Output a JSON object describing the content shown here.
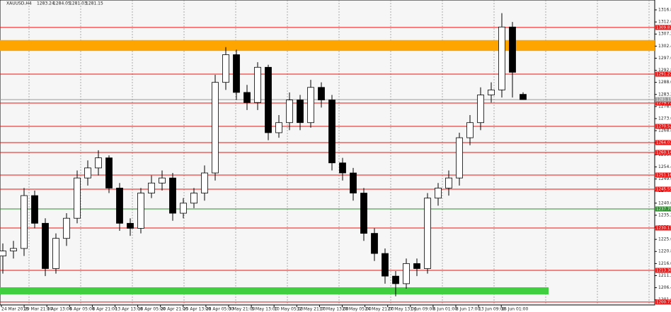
{
  "chart_data": {
    "type": "candlestick",
    "symbol": "XAUUSD,H4",
    "ylim": [
      1199.55,
      1320.73
    ],
    "yticks": [
      {
        "value": 1316.8,
        "label": "1316.80"
      },
      {
        "value": 1312.0,
        "label": "1312.00"
      },
      {
        "value": 1307.2,
        "label": "1307.20"
      },
      {
        "value": 1302.4,
        "label": "1302.40"
      },
      {
        "value": 1297.6,
        "label": "1297.60"
      },
      {
        "value": 1292.8,
        "label": "1292.80"
      },
      {
        "value": 1288.0,
        "label": "1288.00"
      },
      {
        "value": 1283.2,
        "label": "1283.20"
      },
      {
        "value": 1278.4,
        "label": "1278.40"
      },
      {
        "value": 1273.6,
        "label": "1273.60"
      },
      {
        "value": 1268.8,
        "label": "1268.80"
      },
      {
        "value": 1264.0,
        "label": "1264.00"
      },
      {
        "value": 1259.2,
        "label": "1259.20"
      },
      {
        "value": 1254.4,
        "label": "1254.40"
      },
      {
        "value": 1249.6,
        "label": "1249.60"
      },
      {
        "value": 1244.8,
        "label": "1244.80"
      },
      {
        "value": 1240.0,
        "label": "1240.00"
      },
      {
        "value": 1235.2,
        "label": "1235.20"
      },
      {
        "value": 1230.4,
        "label": "1230.40"
      },
      {
        "value": 1225.6,
        "label": "1225.60"
      },
      {
        "value": 1220.8,
        "label": "1220.80"
      },
      {
        "value": 1216.0,
        "label": "1216.00"
      },
      {
        "value": 1211.2,
        "label": "1211.20"
      },
      {
        "value": 1206.4,
        "label": "1206.40"
      },
      {
        "value": 1201.6,
        "label": "1201.60"
      }
    ],
    "x_labels": [
      "24 Mar 2016",
      "29 Mar 21:00",
      "1 Apr 13:00",
      "6 Apr 05:00",
      "8 Apr 21:00",
      "13 Apr 13:00",
      "18 Apr 05:00",
      "20 Apr 21:00",
      "25 Apr 13:00",
      "28 Apr 05:00",
      "3 May 21:00",
      "5 May 13:00",
      "10 May 05:00",
      "12 May 21:00",
      "17 May 13:00",
      "20 May 05:00",
      "24 May 21:00",
      "27 May 13:00",
      "1 Jun 09:00",
      "6 Jun 01:00",
      "8 Jun 17:00",
      "13 Jun 09:00",
      "16 Jun 01:00"
    ],
    "open": [
      1219,
      1221,
      1222,
      1243,
      1232,
      1214,
      1226,
      1234,
      1250,
      1254,
      1258,
      1246,
      1232,
      1230,
      1244,
      1248,
      1250,
      1236,
      1240,
      1244,
      1252,
      1288,
      1299,
      1284,
      1280,
      1294,
      1268,
      1272,
      1281,
      1272,
      1286,
      1281,
      1256,
      1252,
      1244,
      1228,
      1220,
      1211,
      1208,
      1216,
      1214,
      1242,
      1246,
      1250,
      1266,
      1272,
      1283,
      1285,
      1310,
      1283.24
    ],
    "high": [
      1224,
      1225,
      1246,
      1245,
      1234,
      1228,
      1236,
      1253,
      1257,
      1261,
      1259,
      1248,
      1234,
      1246,
      1251,
      1253,
      1252,
      1242,
      1246,
      1255,
      1291,
      1302,
      1301,
      1287,
      1296,
      1295,
      1275,
      1284,
      1283,
      1289,
      1288,
      1283,
      1258,
      1254,
      1246,
      1230,
      1222,
      1213,
      1218,
      1218,
      1244,
      1248,
      1253,
      1268,
      1275,
      1286,
      1288,
      1315.5,
      1312,
      1284.05
    ],
    "low": [
      1212,
      1218,
      1219,
      1230,
      1211,
      1212,
      1223,
      1232,
      1247,
      1251,
      1244,
      1229,
      1227,
      1228,
      1242,
      1245,
      1233,
      1234,
      1238,
      1241,
      1249,
      1285,
      1281,
      1277,
      1277,
      1265,
      1266,
      1269,
      1269,
      1270,
      1278,
      1253,
      1249,
      1241,
      1225,
      1217,
      1208,
      1203,
      1206,
      1211,
      1212,
      1239,
      1243,
      1247,
      1263,
      1269,
      1280,
      1282,
      1282,
      1281.03
    ],
    "close": [
      1221,
      1222,
      1243,
      1232,
      1214,
      1226,
      1234,
      1250,
      1254,
      1258,
      1246,
      1232,
      1230,
      1244,
      1248,
      1250,
      1236,
      1240,
      1244,
      1252,
      1288,
      1299,
      1284,
      1280,
      1294,
      1268,
      1272,
      1281,
      1272,
      1286,
      1281,
      1256,
      1252,
      1244,
      1228,
      1220,
      1211,
      1208,
      1216,
      1214,
      1242,
      1246,
      1250,
      1266,
      1272,
      1283,
      1285,
      1310,
      1292,
      1281.15
    ],
    "bands": [
      {
        "from": 1300.5,
        "to": 1304.8,
        "color": "#ffa500"
      },
      {
        "from": 1203.76,
        "to": 1206.56,
        "color": "#3fcf3f"
      }
    ],
    "levels": [
      {
        "value": 1309.83,
        "label": "1309.83",
        "color": "#ee1111"
      },
      {
        "value": 1291.27,
        "label": "1291.27",
        "color": "#ee1111"
      },
      {
        "value": 1279.77,
        "label": "1279.77",
        "color": "#ee1111"
      },
      {
        "value": 1270.52,
        "label": "1270.52",
        "color": "#ee1111"
      },
      {
        "value": 1264.07,
        "label": "1264.07",
        "color": "#ee1111"
      },
      {
        "value": 1260.14,
        "label": "1260.14",
        "color": "#ee1111"
      },
      {
        "value": 1251.16,
        "label": "1251.16",
        "color": "#ee1111"
      },
      {
        "value": 1245.55,
        "label": "1245.55",
        "color": "#ee1111"
      },
      {
        "value": 1237.7,
        "label": "1237.70",
        "color": "#2e8b2e"
      },
      {
        "value": 1230.13,
        "label": "1230.13",
        "color": "#ee1111"
      },
      {
        "value": 1213.3,
        "label": "1213.30",
        "color": "#ee1111"
      },
      {
        "value": 1200.72,
        "label": "1200.72",
        "color": "#ee1111"
      }
    ],
    "current_price": {
      "value": 1281.15,
      "label": "1281.15",
      "color": "#9a9a9a"
    }
  }
}
